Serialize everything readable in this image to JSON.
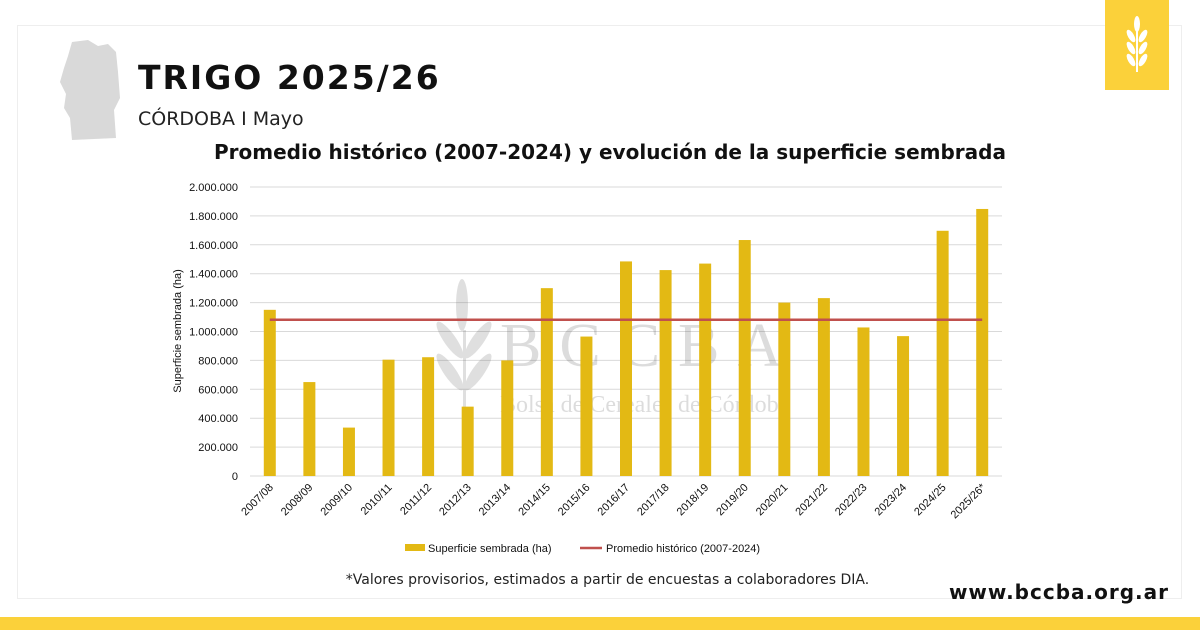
{
  "header": {
    "title": "TRIGO 2025/26",
    "subtitle": "CÓRDOBA I Mayo",
    "badge_icon": "wheat-icon",
    "map_icon": "cordoba-map-icon"
  },
  "watermark": {
    "logo_text": "BCCBA",
    "logo_subtext": "Bolsa de Cereales de Córdoba"
  },
  "footer": {
    "footnote": "*Valores provisorios, estimados a partir de encuestas a colaboradores DIA.",
    "url": "www.bccba.org.ar"
  },
  "colors": {
    "bar": "#e3b914",
    "line": "#c0504d",
    "accent": "#fbd13a"
  },
  "chart_data": {
    "type": "bar",
    "title": "Promedio histórico (2007-2024) y evolución de la superficie sembrada",
    "ylabel": "Superficie sembrada (ha)",
    "xlabel": "",
    "ylim": [
      0,
      2000000
    ],
    "yticks": [
      0,
      200000,
      400000,
      600000,
      800000,
      1000000,
      1200000,
      1400000,
      1600000,
      1800000,
      2000000
    ],
    "ytick_labels": [
      "0",
      "200.000",
      "400.000",
      "600.000",
      "800.000",
      "1.000.000",
      "1.200.000",
      "1.400.000",
      "1.600.000",
      "1.800.000",
      "2.000.000"
    ],
    "grid": true,
    "legend_position": "bottom",
    "categories": [
      "2007/08",
      "2008/09",
      "2009/10",
      "2010/11",
      "2011/12",
      "2012/13",
      "2013/14",
      "2014/15",
      "2015/16",
      "2016/17",
      "2017/18",
      "2018/19",
      "2019/20",
      "2020/21",
      "2021/22",
      "2022/23",
      "2023/24",
      "2024/25",
      "2025/26*"
    ],
    "series": [
      {
        "name": "Superficie sembrada (ha)",
        "type": "bar",
        "values": [
          1150000,
          650000,
          335000,
          805000,
          822000,
          480000,
          800000,
          1300000,
          965000,
          1485000,
          1425000,
          1470000,
          1633000,
          1200000,
          1231000,
          1028000,
          968000,
          1697000,
          1848000
        ]
      },
      {
        "name": "Promedio histórico (2007-2024)",
        "type": "line",
        "value": 1081000
      }
    ]
  }
}
